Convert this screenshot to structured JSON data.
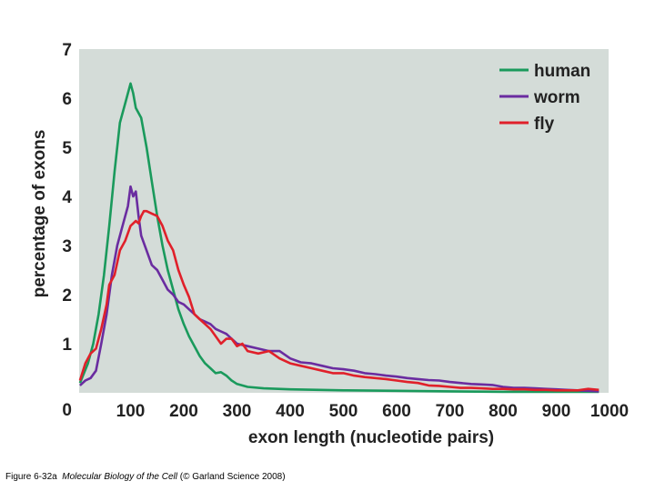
{
  "caption": {
    "figure": "Figure 6-32a",
    "book": "Molecular Biology of the Cell",
    "publisher": "(© Garland Science 2008)"
  },
  "colors": {
    "plot_bg": "#d4dcd8",
    "human": "#1a9a5c",
    "worm": "#6a2ca0",
    "fly": "#e0202a"
  },
  "chart_data": {
    "type": "line",
    "title": "",
    "xlabel": "exon length (nucleotide pairs)",
    "ylabel": "percentage of exons",
    "xlim": [
      0,
      1000
    ],
    "ylim": [
      0,
      7
    ],
    "x_ticks": [
      100,
      200,
      300,
      400,
      500,
      600,
      700,
      800,
      900,
      1000
    ],
    "y_ticks": [
      0,
      1,
      2,
      3,
      4,
      5,
      6,
      7
    ],
    "legend_position": "top-right",
    "series": [
      {
        "name": "human",
        "color": "#1a9a5c",
        "points": [
          [
            5,
            0.2
          ],
          [
            20,
            0.6
          ],
          [
            30,
            1.0
          ],
          [
            40,
            1.6
          ],
          [
            50,
            2.4
          ],
          [
            60,
            3.4
          ],
          [
            70,
            4.5
          ],
          [
            80,
            5.5
          ],
          [
            90,
            5.9
          ],
          [
            100,
            6.3
          ],
          [
            105,
            6.1
          ],
          [
            110,
            5.8
          ],
          [
            120,
            5.6
          ],
          [
            130,
            5.0
          ],
          [
            140,
            4.3
          ],
          [
            150,
            3.6
          ],
          [
            160,
            3.0
          ],
          [
            170,
            2.5
          ],
          [
            180,
            2.1
          ],
          [
            190,
            1.7
          ],
          [
            200,
            1.4
          ],
          [
            210,
            1.15
          ],
          [
            220,
            0.95
          ],
          [
            230,
            0.75
          ],
          [
            240,
            0.6
          ],
          [
            250,
            0.5
          ],
          [
            260,
            0.4
          ],
          [
            270,
            0.42
          ],
          [
            280,
            0.35
          ],
          [
            290,
            0.25
          ],
          [
            300,
            0.18
          ],
          [
            320,
            0.12
          ],
          [
            350,
            0.09
          ],
          [
            400,
            0.07
          ],
          [
            500,
            0.05
          ],
          [
            600,
            0.04
          ],
          [
            700,
            0.03
          ],
          [
            800,
            0.02
          ],
          [
            900,
            0.02
          ],
          [
            980,
            0.02
          ]
        ]
      },
      {
        "name": "worm",
        "color": "#6a2ca0",
        "points": [
          [
            5,
            0.15
          ],
          [
            15,
            0.25
          ],
          [
            25,
            0.3
          ],
          [
            35,
            0.45
          ],
          [
            45,
            1.0
          ],
          [
            55,
            1.6
          ],
          [
            65,
            2.4
          ],
          [
            75,
            3.0
          ],
          [
            85,
            3.4
          ],
          [
            95,
            3.8
          ],
          [
            100,
            4.2
          ],
          [
            105,
            4.0
          ],
          [
            110,
            4.1
          ],
          [
            115,
            3.6
          ],
          [
            120,
            3.2
          ],
          [
            130,
            2.9
          ],
          [
            140,
            2.6
          ],
          [
            150,
            2.5
          ],
          [
            160,
            2.3
          ],
          [
            170,
            2.1
          ],
          [
            180,
            2.0
          ],
          [
            190,
            1.85
          ],
          [
            200,
            1.8
          ],
          [
            210,
            1.7
          ],
          [
            220,
            1.6
          ],
          [
            230,
            1.5
          ],
          [
            240,
            1.45
          ],
          [
            250,
            1.4
          ],
          [
            260,
            1.3
          ],
          [
            270,
            1.25
          ],
          [
            280,
            1.2
          ],
          [
            290,
            1.1
          ],
          [
            300,
            1.0
          ],
          [
            320,
            0.95
          ],
          [
            340,
            0.9
          ],
          [
            360,
            0.85
          ],
          [
            380,
            0.85
          ],
          [
            400,
            0.7
          ],
          [
            420,
            0.62
          ],
          [
            440,
            0.6
          ],
          [
            460,
            0.55
          ],
          [
            480,
            0.5
          ],
          [
            500,
            0.48
          ],
          [
            520,
            0.45
          ],
          [
            540,
            0.4
          ],
          [
            560,
            0.38
          ],
          [
            580,
            0.35
          ],
          [
            600,
            0.33
          ],
          [
            620,
            0.3
          ],
          [
            640,
            0.28
          ],
          [
            660,
            0.26
          ],
          [
            680,
            0.25
          ],
          [
            700,
            0.22
          ],
          [
            720,
            0.2
          ],
          [
            740,
            0.18
          ],
          [
            760,
            0.17
          ],
          [
            780,
            0.16
          ],
          [
            800,
            0.12
          ],
          [
            820,
            0.1
          ],
          [
            840,
            0.1
          ],
          [
            860,
            0.09
          ],
          [
            880,
            0.08
          ],
          [
            900,
            0.07
          ],
          [
            920,
            0.06
          ],
          [
            940,
            0.05
          ],
          [
            960,
            0.04
          ],
          [
            980,
            0.03
          ]
        ]
      },
      {
        "name": "fly",
        "color": "#e0202a",
        "points": [
          [
            5,
            0.25
          ],
          [
            15,
            0.6
          ],
          [
            25,
            0.8
          ],
          [
            35,
            0.9
          ],
          [
            45,
            1.3
          ],
          [
            55,
            1.8
          ],
          [
            60,
            2.2
          ],
          [
            70,
            2.4
          ],
          [
            80,
            2.9
          ],
          [
            90,
            3.1
          ],
          [
            100,
            3.4
          ],
          [
            110,
            3.5
          ],
          [
            115,
            3.45
          ],
          [
            120,
            3.6
          ],
          [
            125,
            3.7
          ],
          [
            130,
            3.7
          ],
          [
            140,
            3.65
          ],
          [
            150,
            3.6
          ],
          [
            160,
            3.4
          ],
          [
            170,
            3.1
          ],
          [
            180,
            2.9
          ],
          [
            190,
            2.5
          ],
          [
            200,
            2.2
          ],
          [
            210,
            1.95
          ],
          [
            220,
            1.6
          ],
          [
            230,
            1.5
          ],
          [
            240,
            1.4
          ],
          [
            250,
            1.3
          ],
          [
            260,
            1.15
          ],
          [
            270,
            1.0
          ],
          [
            280,
            1.1
          ],
          [
            290,
            1.1
          ],
          [
            300,
            0.95
          ],
          [
            310,
            1.0
          ],
          [
            320,
            0.85
          ],
          [
            340,
            0.8
          ],
          [
            360,
            0.85
          ],
          [
            380,
            0.7
          ],
          [
            400,
            0.6
          ],
          [
            420,
            0.55
          ],
          [
            440,
            0.5
          ],
          [
            460,
            0.45
          ],
          [
            480,
            0.4
          ],
          [
            500,
            0.4
          ],
          [
            520,
            0.35
          ],
          [
            540,
            0.32
          ],
          [
            560,
            0.3
          ],
          [
            580,
            0.28
          ],
          [
            600,
            0.25
          ],
          [
            620,
            0.22
          ],
          [
            640,
            0.2
          ],
          [
            660,
            0.15
          ],
          [
            680,
            0.14
          ],
          [
            700,
            0.12
          ],
          [
            720,
            0.1
          ],
          [
            740,
            0.1
          ],
          [
            760,
            0.09
          ],
          [
            780,
            0.08
          ],
          [
            800,
            0.08
          ],
          [
            820,
            0.07
          ],
          [
            840,
            0.07
          ],
          [
            860,
            0.06
          ],
          [
            880,
            0.06
          ],
          [
            900,
            0.05
          ],
          [
            920,
            0.05
          ],
          [
            940,
            0.05
          ],
          [
            960,
            0.08
          ],
          [
            980,
            0.06
          ]
        ]
      }
    ]
  }
}
